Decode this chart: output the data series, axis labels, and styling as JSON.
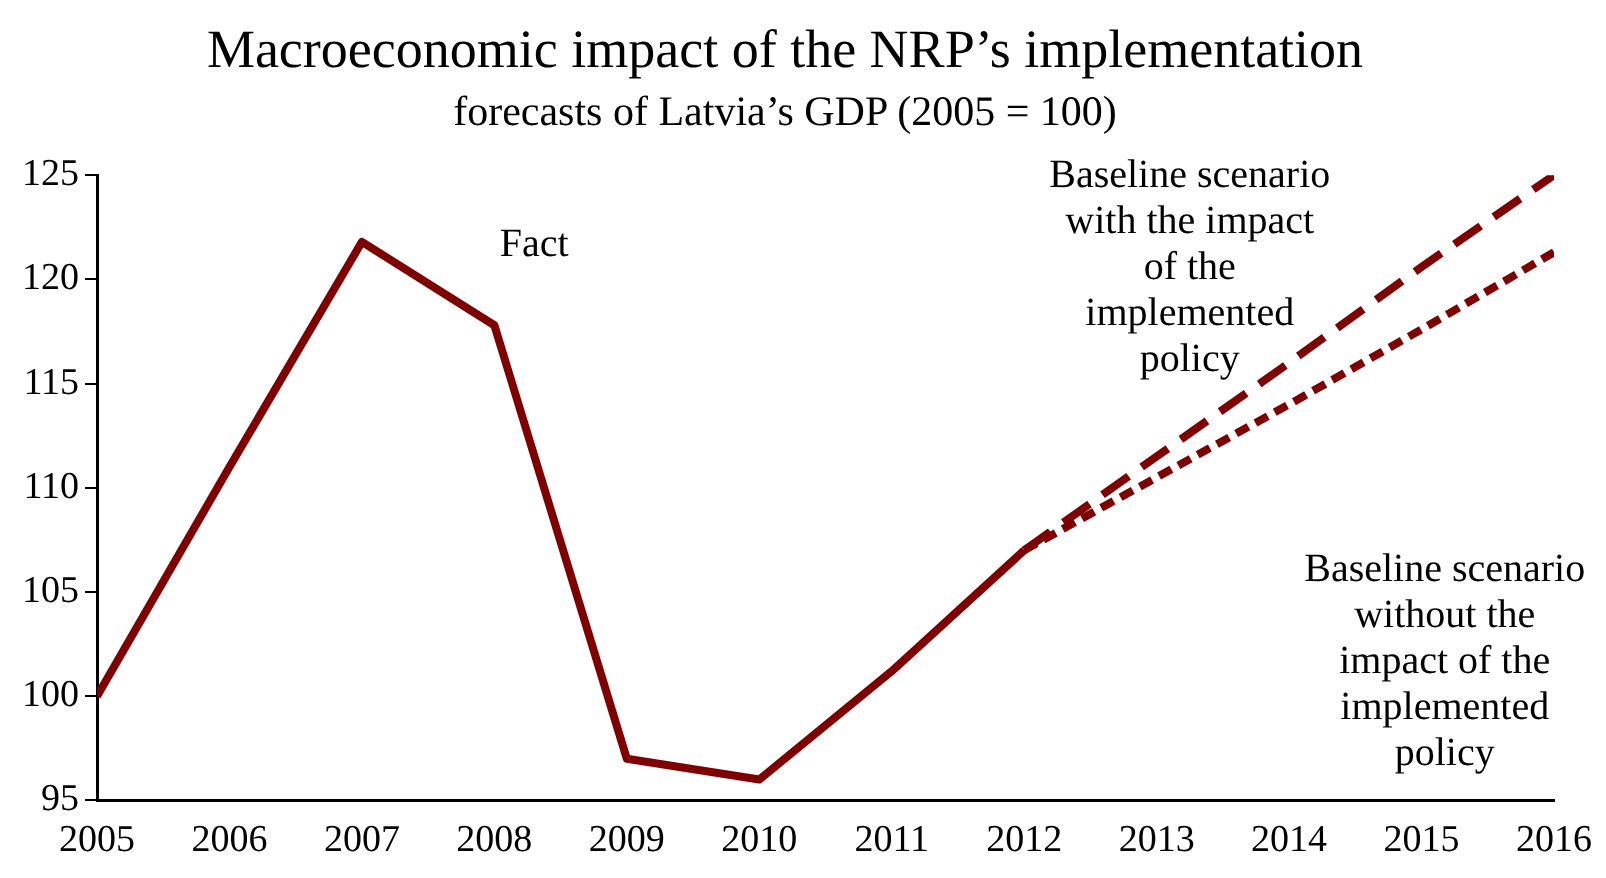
{
  "chart_data": {
    "type": "line",
    "title": "Macroeconomic impact of the NRP’s implementation",
    "subtitle": "forecasts of Latvia’s GDP (2005 = 100)",
    "series": [
      {
        "color": "#7f0000",
        "line_style": "solid",
        "x": [
          2005,
          2006,
          2007,
          2008,
          2009,
          2010,
          2011,
          2012
        ],
        "values": [
          100,
          111,
          121.8,
          117.8,
          97,
          96,
          101.2,
          107
        ]
      },
      {
        "color": "#7f0000",
        "line_style": "dashed",
        "x": [
          2012,
          2013,
          2014,
          2015,
          2016
        ],
        "values": [
          107,
          111.5,
          116,
          120.6,
          125
        ]
      },
      {
        "color": "#7f0000",
        "line_style": "dotted",
        "x": [
          2012,
          2013,
          2014,
          2015,
          2016
        ],
        "values": [
          107,
          110.5,
          114,
          117.6,
          121.3
        ]
      }
    ],
    "xlim": [
      2005,
      2016
    ],
    "xticks": [
      2005,
      2006,
      2007,
      2008,
      2009,
      2010,
      2011,
      2012,
      2013,
      2014,
      2015,
      2016
    ],
    "ylim": [
      95,
      125
    ],
    "yticks": [
      95,
      100,
      105,
      110,
      115,
      120,
      125
    ],
    "grid": false,
    "legend": false,
    "marker": "none",
    "annotations": [
      "Fact",
      "Baseline scenario with the impact of the implemented policy",
      "Baseline scenario without the impact of the implemented policy"
    ]
  }
}
